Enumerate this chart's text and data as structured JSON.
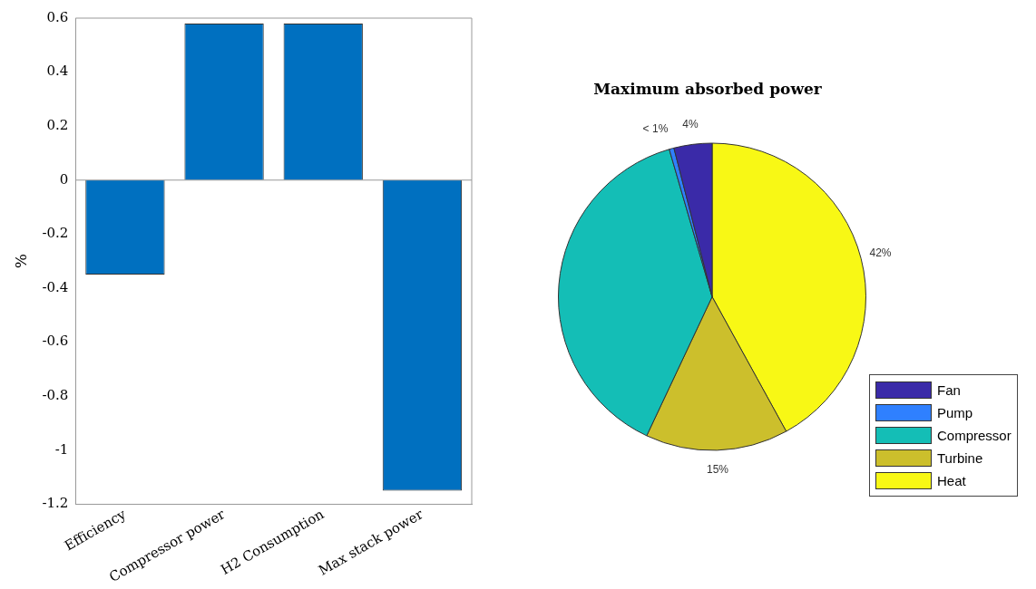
{
  "chart_data": [
    {
      "type": "bar",
      "ylabel": "%",
      "categories": [
        "Efficiency",
        "Compressor power",
        "H2 Consumption",
        "Max stack power"
      ],
      "values": [
        -0.35,
        0.58,
        0.58,
        -1.15
      ],
      "color": "#0070c0",
      "ylim": [
        -1.2,
        0.6
      ],
      "yticks": [
        -1.2,
        -1,
        -0.8,
        -0.6,
        -0.4,
        -0.2,
        0,
        0.2,
        0.4,
        0.6
      ],
      "grid": false,
      "legend": false,
      "ref_lines": [
        {
          "axis": "y",
          "value": 0,
          "color": "#999999"
        }
      ]
    },
    {
      "type": "pie",
      "title": "Maximum absorbed power",
      "categories": [
        "Fan",
        "Pump",
        "Compressor",
        "Turbine",
        "Heat"
      ],
      "values": [
        4,
        0.5,
        38.5,
        15,
        42
      ],
      "colors": [
        "#3a2aa8",
        "#2f80ff",
        "#14beb6",
        "#ccbf2c",
        "#f8f815"
      ],
      "value_labels": [
        "4%",
        "< 1%",
        null,
        "15%",
        "42%"
      ],
      "legend": "bottom right"
    }
  ]
}
